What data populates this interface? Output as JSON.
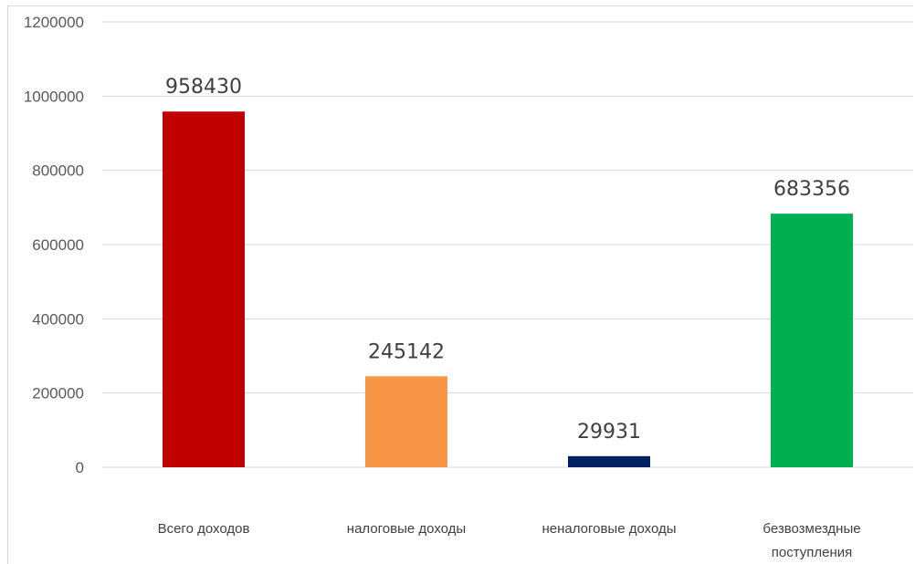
{
  "chart_data": {
    "type": "bar",
    "title": "",
    "xlabel": "",
    "ylabel": "",
    "ylim": [
      0,
      1200000
    ],
    "yticks": [
      0,
      200000,
      400000,
      600000,
      800000,
      1000000,
      1200000
    ],
    "ytick_labels": [
      "0",
      "200000",
      "400000",
      "600000",
      "800000",
      "1000000",
      "1200000"
    ],
    "grid": true,
    "legend": "none",
    "categories": [
      [
        "Всего доходов"
      ],
      [
        "налоговые доходы"
      ],
      [
        "неналоговые доходы"
      ],
      [
        "безвозмездные",
        "поступления"
      ]
    ],
    "values": [
      958430,
      245142,
      29931,
      683356
    ],
    "data_labels": [
      "958430",
      "245142",
      "29931",
      "683356"
    ],
    "colors": [
      "#c00000",
      "#f79646",
      "#002060",
      "#00b050"
    ]
  }
}
